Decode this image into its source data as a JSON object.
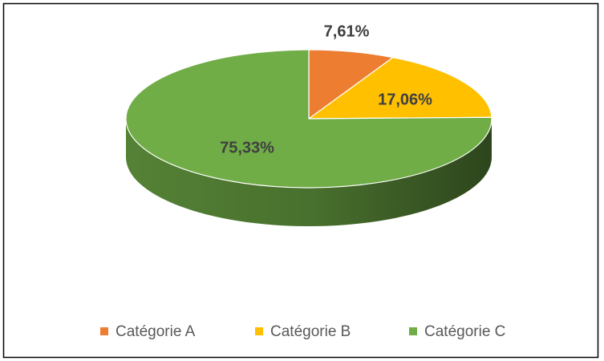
{
  "chart_data": {
    "type": "pie",
    "categories": [
      "Catégorie A",
      "Catégorie B",
      "Catégorie C"
    ],
    "values": [
      7.61,
      17.06,
      75.33
    ],
    "value_labels": [
      "7,61%",
      "17,06%",
      "75,33%"
    ],
    "colors": [
      "#ed7d31",
      "#ffc000",
      "#70ad47"
    ],
    "legend": "bottom"
  }
}
